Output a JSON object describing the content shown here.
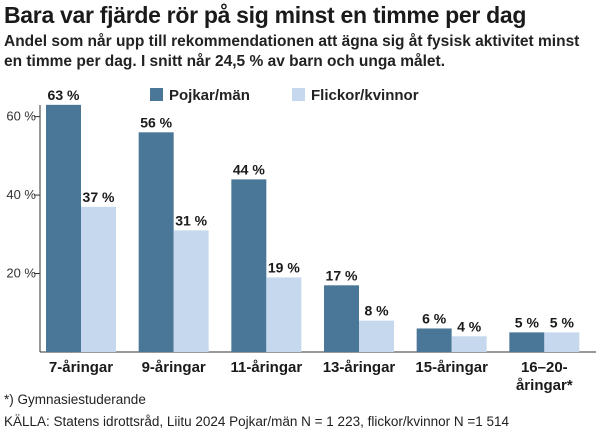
{
  "title": "Bara var fjärde rör på sig minst en timme per dag",
  "subtitle": "Andel som når upp till rekommendationen att ägna sig åt fysisk aktivitet minst en timme per dag. I snitt når 24,5 % av barn och unga målet.",
  "footnote": "*) Gymnasiestuderande",
  "source": "KÄLLA: Statens idrottsråd, Liitu 2024 Pojkar/män N = 1 223, flickor/kvinnor N =1 514",
  "chart_data": {
    "type": "bar",
    "categories": [
      "7-åringar",
      "9-åringar",
      "11-åringar",
      "13-åringar",
      "15-åringar",
      "16–20-åringar*"
    ],
    "category_lines": [
      [
        "7-åringar"
      ],
      [
        "9-åringar"
      ],
      [
        "11-åringar"
      ],
      [
        "13-åringar"
      ],
      [
        "15-åringar"
      ],
      [
        "16–20-",
        "åringar*"
      ]
    ],
    "series": [
      {
        "name": "Pojkar/män",
        "color": "#4a7797",
        "values": [
          63,
          56,
          44,
          17,
          6,
          5
        ],
        "labels": [
          "63 %",
          "56 %",
          "44 %",
          "17 %",
          "6 %",
          "5 %"
        ]
      },
      {
        "name": "Flickor/kvinnor",
        "color": "#c5d8ee",
        "values": [
          37,
          31,
          19,
          8,
          4,
          5
        ],
        "labels": [
          "37 %",
          "31 %",
          "19 %",
          "8 %",
          "4 %",
          "5 %"
        ]
      }
    ],
    "yticks": [
      20,
      40,
      60
    ],
    "ytick_labels": [
      "20 %",
      "40 %",
      "60 %"
    ],
    "ylim": [
      0,
      65
    ],
    "grid": false,
    "legend_position": "top-center"
  }
}
